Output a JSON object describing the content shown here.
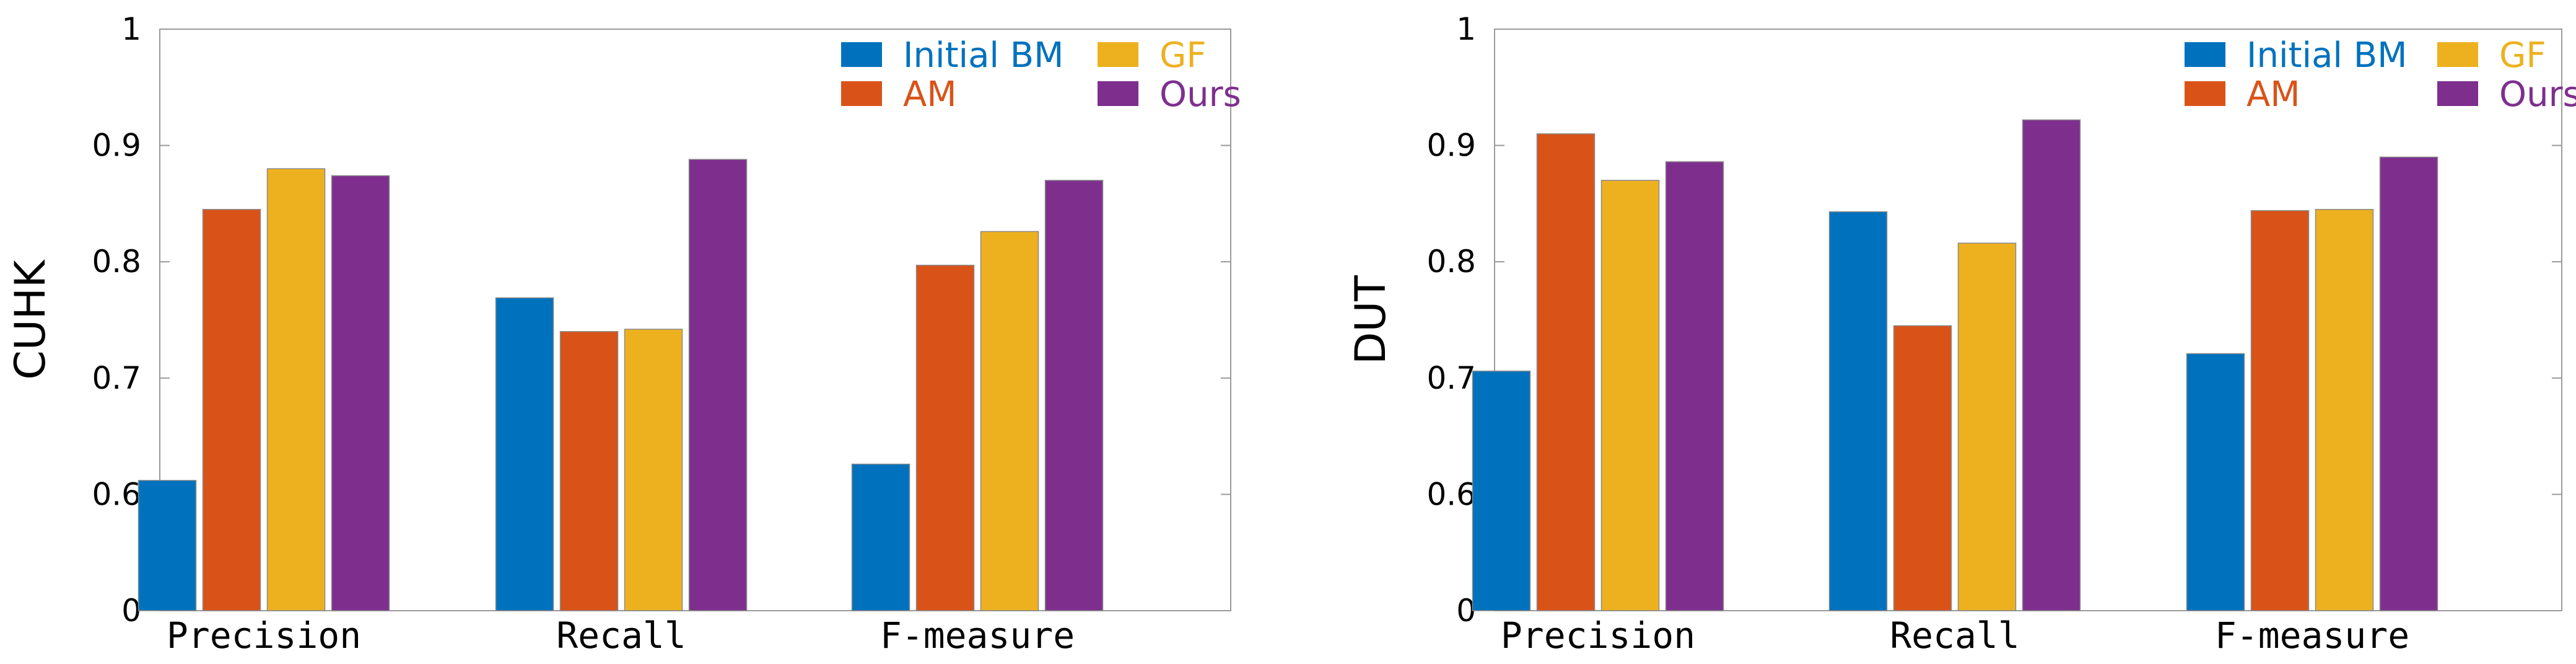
{
  "colors": {
    "initial_bm": "#0072BD",
    "am": "#D95319",
    "gf": "#EDB120",
    "ours": "#7E2F8E"
  },
  "chart_data": [
    {
      "type": "bar",
      "ylabel": "CUHK",
      "xlabel": "",
      "title": "",
      "ylim": [
        0.5,
        1
      ],
      "yticks": [
        0.6,
        0.7,
        0.8,
        0.9,
        1
      ],
      "ytick_labels": [
        "0.6",
        "0.7",
        "0.8",
        "0.9",
        "1"
      ],
      "ybase_label": "0",
      "categories": [
        "Precision",
        "Recall",
        "F-measure"
      ],
      "legend_position": "top-right",
      "series": [
        {
          "name": "Initial BM",
          "color_key": "initial_bm",
          "values": [
            0.612,
            0.769,
            0.626
          ]
        },
        {
          "name": "AM",
          "color_key": "am",
          "values": [
            0.845,
            0.74,
            0.797
          ]
        },
        {
          "name": "GF",
          "color_key": "gf",
          "values": [
            0.88,
            0.742,
            0.826
          ]
        },
        {
          "name": "Ours",
          "color_key": "ours",
          "values": [
            0.874,
            0.888,
            0.87
          ]
        }
      ]
    },
    {
      "type": "bar",
      "ylabel": "DUT",
      "xlabel": "",
      "title": "",
      "ylim": [
        0.5,
        1
      ],
      "yticks": [
        0.6,
        0.7,
        0.8,
        0.9,
        1
      ],
      "ytick_labels": [
        "0.6",
        "0.7",
        "0.8",
        "0.9",
        "1"
      ],
      "ybase_label": "0",
      "categories": [
        "Precision",
        "Recall",
        "F-measure"
      ],
      "legend_position": "top-right",
      "series": [
        {
          "name": "Initial BM",
          "color_key": "initial_bm",
          "values": [
            0.706,
            0.843,
            0.721
          ]
        },
        {
          "name": "AM",
          "color_key": "am",
          "values": [
            0.91,
            0.745,
            0.844
          ]
        },
        {
          "name": "GF",
          "color_key": "gf",
          "values": [
            0.87,
            0.816,
            0.845
          ]
        },
        {
          "name": "Ours",
          "color_key": "ours",
          "values": [
            0.886,
            0.922,
            0.89
          ]
        }
      ]
    }
  ]
}
